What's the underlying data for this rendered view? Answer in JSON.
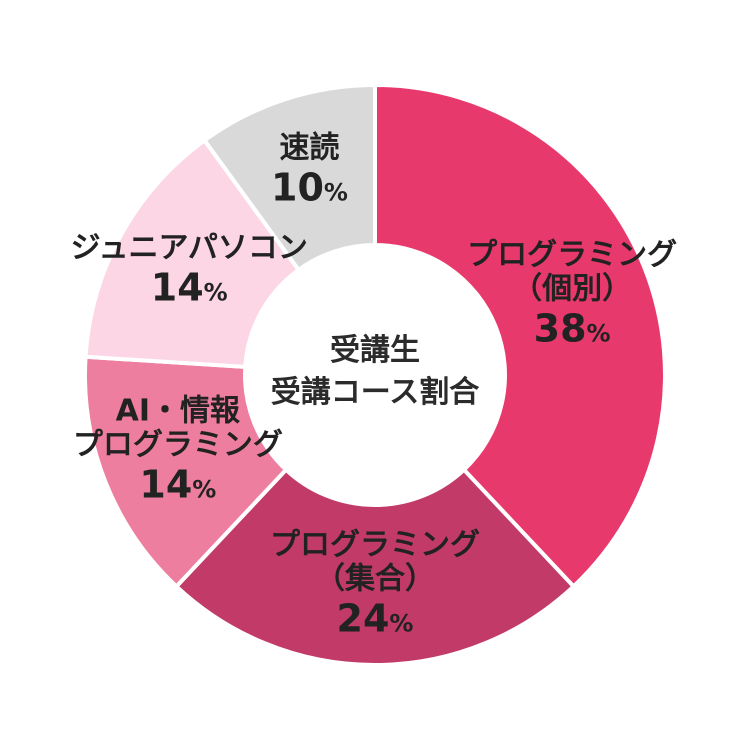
{
  "chart_data": {
    "type": "pie",
    "donut": true,
    "center_title": [
      "受講生",
      "受講コース割合"
    ],
    "start": "12 o'clock",
    "direction": "clockwise",
    "slices": [
      {
        "label": [
          "プログラミング",
          "（個別）"
        ],
        "value": 38,
        "value_label": "38",
        "unit": "%",
        "color": "#e8396d"
      },
      {
        "label": [
          "プログラミング",
          "（集合）"
        ],
        "value": 24,
        "value_label": "24",
        "unit": "%",
        "color": "#c23a68"
      },
      {
        "label": [
          "AI・情報",
          "プログラミング"
        ],
        "value": 14,
        "value_label": "14",
        "unit": "%",
        "color": "#ee7ea0"
      },
      {
        "label": [
          "ジュニアパソコン"
        ],
        "value": 14,
        "value_label": "14",
        "unit": "%",
        "color": "#fcd6e4"
      },
      {
        "label": [
          "速読"
        ],
        "value": 10,
        "value_label": "10",
        "unit": "%",
        "color": "#d9d9d9"
      }
    ]
  }
}
